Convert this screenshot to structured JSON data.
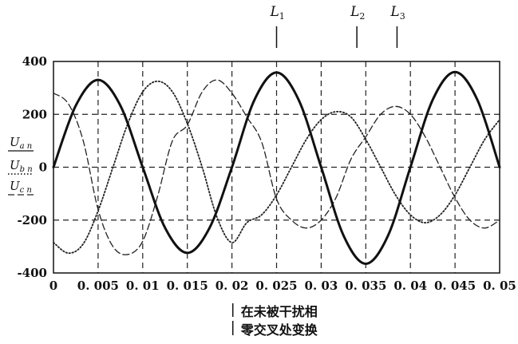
{
  "chart_data": {
    "type": "line",
    "x_range": [
      0,
      0.05
    ],
    "ylim": [
      -400,
      400
    ],
    "x_ticks": [
      "0",
      "0. 005",
      "0. 01",
      "0. 015",
      "0. 02",
      "0. 025",
      "0. 03",
      "0. 035",
      "0. 04",
      "0. 045",
      "0. 05"
    ],
    "y_ticks": [
      "400",
      "200",
      "0",
      "-200",
      "-400"
    ],
    "grid": "dashed lines at every tick",
    "series": [
      {
        "name": "U_an",
        "label_main": "U",
        "label_sub": "a n",
        "style": "solid-thick",
        "x": [
          0,
          0.0025,
          0.005,
          0.0075,
          0.01,
          0.0125,
          0.015,
          0.0175,
          0.02,
          0.0225,
          0.025,
          0.0275,
          0.03,
          0.0325,
          0.035,
          0.0375,
          0.04,
          0.0425,
          0.045,
          0.0475,
          0.05
        ],
        "y": [
          0,
          233,
          330,
          233,
          0,
          -229,
          -324,
          -229,
          0,
          253,
          358,
          253,
          0,
          -258,
          -365,
          -258,
          0,
          255,
          360,
          255,
          0
        ]
      },
      {
        "name": "U_bn",
        "label_main": "U",
        "label_sub": "b n",
        "style": "dotted",
        "x": [
          0,
          0.001667,
          0.003333,
          0.005,
          0.006667,
          0.008333,
          0.01,
          0.011667,
          0.013333,
          0.015,
          0.016667,
          0.018333,
          0.02,
          0.021667,
          0.023333,
          0.025,
          0.026667,
          0.028333,
          0.03,
          0.031667,
          0.033333,
          0.035,
          0.036667,
          0.038333,
          0.04,
          0.041667,
          0.043333,
          0.045,
          0.046667,
          0.048333,
          0.05
        ],
        "y": [
          -285,
          -325,
          -290,
          -165,
          0,
          165,
          285,
          325,
          285,
          165,
          0,
          -190,
          -285,
          -210,
          -180,
          -105,
          0,
          105,
          180,
          210,
          190,
          105,
          0,
          -105,
          -180,
          -210,
          -180,
          -105,
          0,
          105,
          180
        ]
      },
      {
        "name": "U_cn",
        "label_main": "U",
        "label_sub": "c n",
        "style": "dashed",
        "x": [
          0,
          0.001667,
          0.003333,
          0.005,
          0.006667,
          0.008333,
          0.01,
          0.011667,
          0.013333,
          0.015,
          0.016667,
          0.018333,
          0.02,
          0.021667,
          0.023333,
          0.025,
          0.026667,
          0.028333,
          0.03,
          0.031667,
          0.033333,
          0.035,
          0.036667,
          0.038333,
          0.04,
          0.041667,
          0.043333,
          0.045,
          0.046667,
          0.048333,
          0.05
        ],
        "y": [
          280,
          240,
          100,
          -160,
          -300,
          -330,
          -280,
          -110,
          100,
          160,
          285,
          330,
          280,
          190,
          95,
          -120,
          -200,
          -230,
          -200,
          -115,
          30,
          115,
          200,
          230,
          200,
          115,
          0,
          -115,
          -200,
          -230,
          -200
        ]
      }
    ],
    "annotations": {
      "top_markers": [
        {
          "main": "L",
          "sub": "1",
          "x": 0.025
        },
        {
          "main": "L",
          "sub": "2",
          "x": 0.034
        },
        {
          "main": "L",
          "sub": "3",
          "x": 0.0385
        }
      ],
      "bottom_marker_x": 0.0201,
      "bottom_note_line1": "在未被干扰相",
      "bottom_note_line2": "零交叉处变换"
    }
  }
}
